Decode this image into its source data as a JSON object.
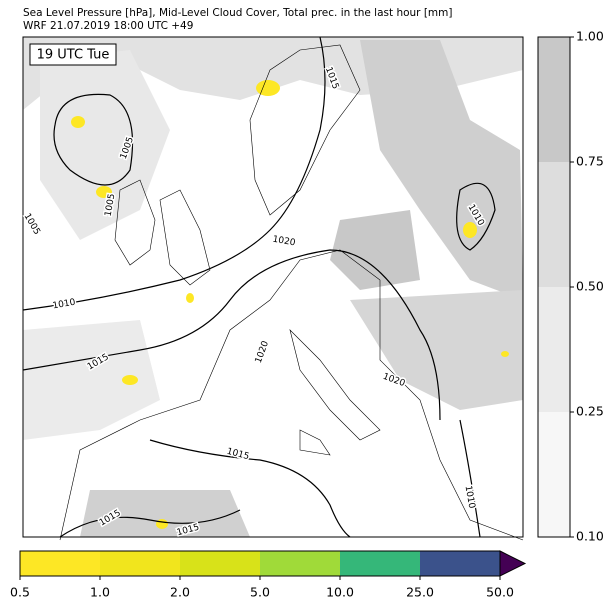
{
  "header": {
    "title": "Sea Level Pressure [hPa], Mid-Level Cloud Cover, Total prec. in the last hour [mm]",
    "subtitle": "WRF 21.07.2019 18:00 UTC +49"
  },
  "map": {
    "time_label": "19 UTC Tue",
    "contour_labels": [
      "1015",
      "1005",
      "1005",
      "1005",
      "1010",
      "1015",
      "1020",
      "1010",
      "1020",
      "1020",
      "1015",
      "1010",
      "1015",
      "1015"
    ]
  },
  "cloud_colorbar": {
    "ticks": [
      {
        "value": 0.1,
        "label": "0.10"
      },
      0.25,
      {
        "value": 0.5,
        "label": "0.50"
      },
      0.75,
      {
        "value": 1,
        "label": "1.00"
      }
    ],
    "colors": [
      "#f7f7f7",
      "#ebebeb",
      "#dddddd",
      "#c8c8c8"
    ]
  },
  "precip_colorbar": {
    "ticks": [
      0.5,
      {
        "value": 1,
        "label": "1.0"
      },
      {
        "value": 2,
        "label": "2.0"
      },
      {
        "value": 5,
        "label": "5.0"
      },
      {
        "value": 10,
        "label": "10.0"
      },
      {
        "value": 25,
        "label": "25.0"
      },
      {
        "value": 50,
        "label": "50.0"
      }
    ],
    "colors": [
      "#fde725",
      "#f1e51d",
      "#d8e219",
      "#a0da39",
      "#35b779",
      "#3b528b"
    ],
    "extend_color": "#440154"
  }
}
